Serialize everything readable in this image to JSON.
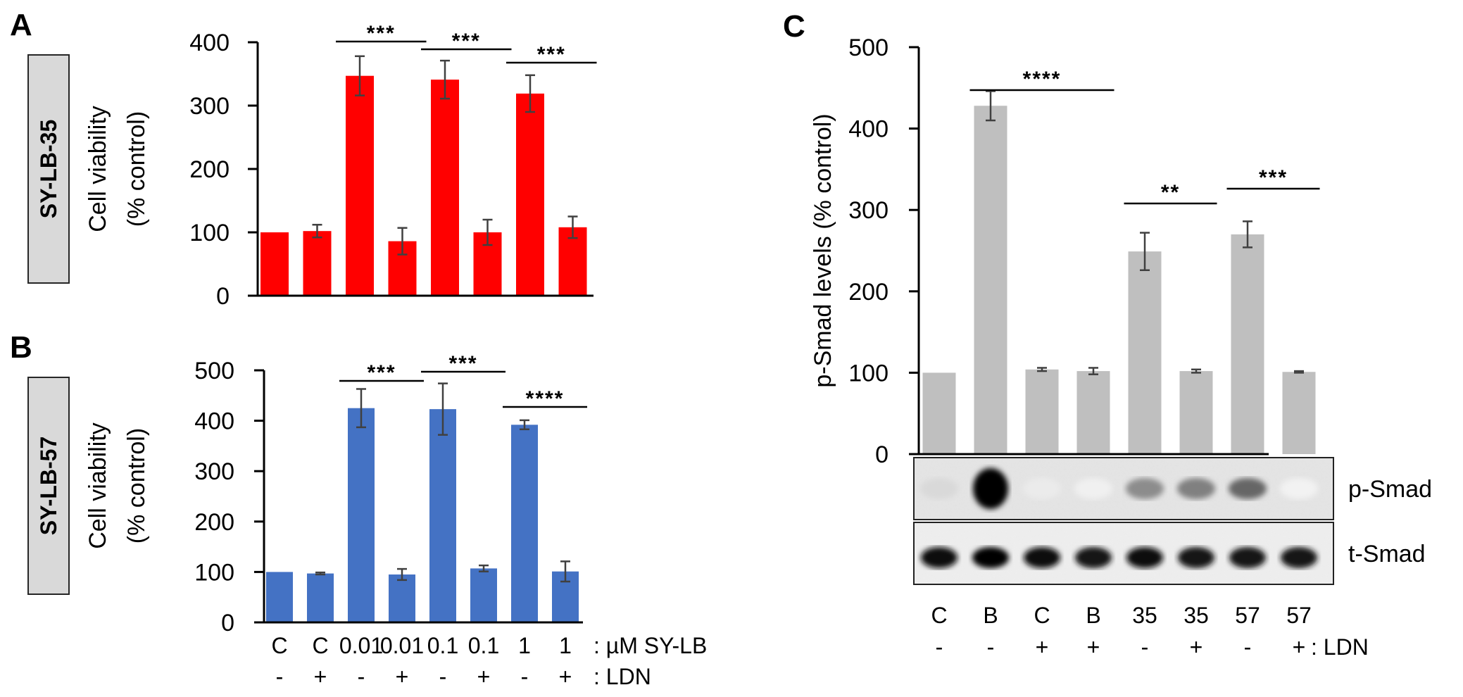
{
  "panels": {
    "A": {
      "letter": "A",
      "compound_badge": "SY-LB-35"
    },
    "B": {
      "letter": "B",
      "compound_badge": "SY-LB-57"
    },
    "C": {
      "letter": "C"
    }
  },
  "chart_data": [
    {
      "id": "A",
      "type": "bar",
      "title": "",
      "xlabel": "",
      "ylabel": "Cell viability (% control)",
      "ylabel_lines": [
        "Cell viability",
        "(% control)"
      ],
      "ylim": [
        0,
        400
      ],
      "yticks": [
        0,
        100,
        200,
        300,
        400
      ],
      "grid": false,
      "color": "#FF0000",
      "categories": [
        "C -",
        "C +",
        "0.01 -",
        "0.01 +",
        "0.1 -",
        "0.1 +",
        "1 -",
        "1 +"
      ],
      "values": [
        100,
        102,
        347,
        86,
        341,
        100,
        319,
        108
      ],
      "errors": [
        0,
        10,
        31,
        21,
        30,
        20,
        29,
        17
      ],
      "significance": [
        {
          "from": 2,
          "to": 3,
          "label": "***"
        },
        {
          "from": 4,
          "to": 5,
          "label": "***"
        },
        {
          "from": 6,
          "to": 7,
          "label": "***"
        }
      ]
    },
    {
      "id": "B",
      "type": "bar",
      "title": "",
      "xlabel": "",
      "ylabel": "Cell viability (% control)",
      "ylabel_lines": [
        "Cell viability",
        "(% control)"
      ],
      "ylim": [
        0,
        500
      ],
      "yticks": [
        0,
        100,
        200,
        300,
        400,
        500
      ],
      "grid": false,
      "color": "#4472C4",
      "categories": [
        "C -",
        "C +",
        "0.01 -",
        "0.01 +",
        "0.1 -",
        "0.1 +",
        "1 -",
        "1 +"
      ],
      "values": [
        100,
        97,
        425,
        95,
        423,
        107,
        392,
        101
      ],
      "errors": [
        0,
        2,
        38,
        11,
        51,
        6,
        9,
        20
      ],
      "significance": [
        {
          "from": 2,
          "to": 3,
          "label": "***"
        },
        {
          "from": 4,
          "to": 5,
          "label": "***"
        },
        {
          "from": 6,
          "to": 7,
          "label": "****"
        }
      ],
      "x_rows": [
        {
          "labels": [
            "C",
            "C",
            "0.01",
            "0.01",
            "0.1",
            "0.1",
            "1",
            "1"
          ],
          "suffix": ": µM SY-LB"
        },
        {
          "labels": [
            "-",
            "+",
            "-",
            "+",
            "-",
            "+",
            "-",
            "+"
          ],
          "suffix": ": LDN"
        }
      ]
    },
    {
      "id": "C",
      "type": "bar",
      "title": "",
      "xlabel": "",
      "ylabel": "p-Smad levels (% control)",
      "ylim": [
        0,
        500
      ],
      "yticks": [
        0,
        100,
        200,
        300,
        400,
        500
      ],
      "grid": false,
      "color": "#BFBFBF",
      "categories": [
        "C -",
        "B -",
        "C +",
        "B +",
        "35 -",
        "35 +",
        "57 -",
        "57 +"
      ],
      "values": [
        100,
        428,
        104,
        102,
        249,
        102,
        270,
        101
      ],
      "errors": [
        0,
        18,
        2,
        4,
        23,
        2,
        16,
        1
      ],
      "significance": [
        {
          "from": 1,
          "to": 3,
          "label": "****"
        },
        {
          "from": 4,
          "to": 5,
          "label": "**"
        },
        {
          "from": 6,
          "to": 7,
          "label": "***"
        }
      ],
      "blot": {
        "rows": [
          {
            "label": "p-Smad",
            "intensities": [
              0.15,
              1.0,
              0.08,
              0.06,
              0.45,
              0.5,
              0.6,
              0.05
            ]
          },
          {
            "label": "t-Smad",
            "intensities": [
              0.95,
              1.0,
              0.95,
              0.9,
              0.95,
              0.9,
              0.9,
              0.9
            ]
          }
        ]
      },
      "x_rows": [
        {
          "labels": [
            "C",
            "B",
            "C",
            "B",
            "35",
            "35",
            "57",
            "57"
          ],
          "suffix": ""
        },
        {
          "labels": [
            "-",
            "-",
            "+",
            "+",
            "-",
            "+",
            "-",
            "+"
          ],
          "suffix": ": LDN"
        }
      ]
    }
  ]
}
